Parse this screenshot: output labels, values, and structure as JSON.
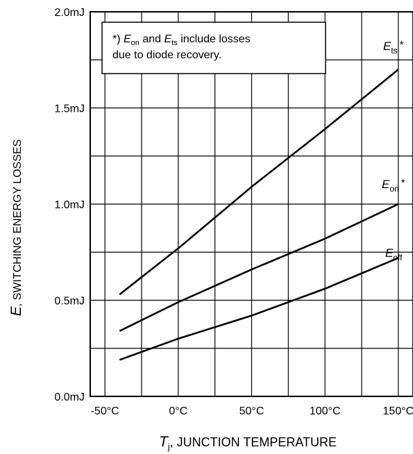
{
  "chart_data": {
    "type": "line",
    "xlabel_symbol": "T",
    "xlabel_sub": "j",
    "xlabel_text": ", JUNCTION TEMPERATURE",
    "ylabel_symbol": "E",
    "ylabel_text": ", SWITCHING ENERGY LOSSES",
    "x_ticks": [
      "-50°C",
      "0°C",
      "50°C",
      "100°C",
      "150°C"
    ],
    "y_ticks": [
      "0.0mJ",
      "0.5mJ",
      "1.0mJ",
      "1.5mJ",
      "2.0mJ"
    ],
    "xlim": [
      -60,
      160
    ],
    "ylim": [
      0.0,
      2.0
    ],
    "grid": true,
    "annotation": {
      "prefix": "*) ",
      "sym1": "E",
      "sub1": "on",
      "mid": " and ",
      "sym2": "E",
      "sub2": "ts",
      "rest1": " include losses",
      "line2": "due to  diode recovery."
    },
    "series": [
      {
        "symbol": "E",
        "sub": "ts",
        "suffix": "*",
        "x": [
          -40,
          0,
          50,
          100,
          150
        ],
        "y": [
          0.53,
          0.77,
          1.09,
          1.39,
          1.7
        ]
      },
      {
        "symbol": "E",
        "sub": "on",
        "suffix": "*",
        "x": [
          -40,
          0,
          50,
          100,
          150
        ],
        "y": [
          0.34,
          0.49,
          0.66,
          0.82,
          1.0
        ]
      },
      {
        "symbol": "E",
        "sub": "off",
        "suffix": "",
        "x": [
          -40,
          0,
          50,
          100,
          150
        ],
        "y": [
          0.19,
          0.3,
          0.42,
          0.56,
          0.72
        ]
      }
    ]
  }
}
